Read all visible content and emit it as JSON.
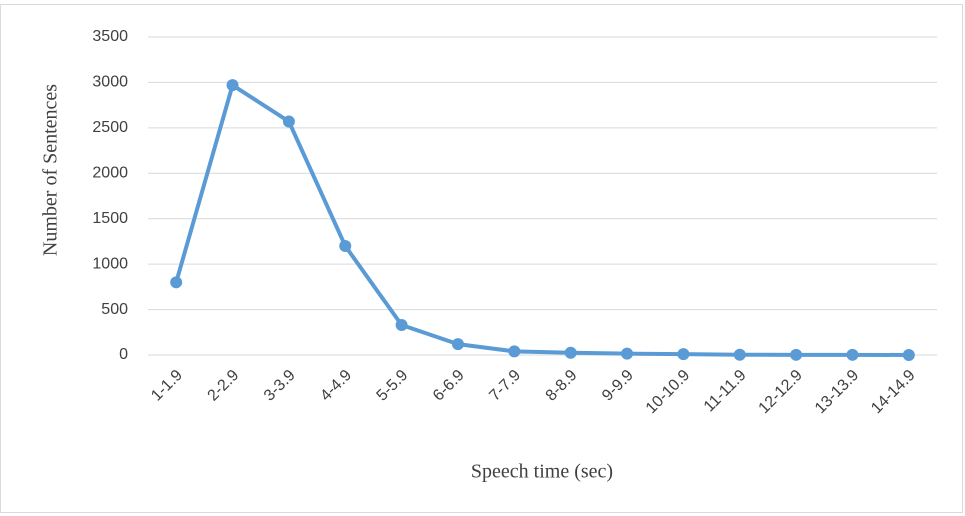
{
  "chart_data": {
    "type": "line",
    "x_label": "Speech time (sec)",
    "y_label": "Number of Sentences",
    "categories": [
      "1-1.9",
      "2-2.9",
      "3-3.9",
      "4-4.9",
      "5-5.9",
      "6-6.9",
      "7-7.9",
      "8-8.9",
      "9-9.9",
      "10-10.9",
      "11-11.9",
      "12-12.9",
      "13-13.9",
      "14-14.9"
    ],
    "series": [
      {
        "color": "#5b9bd5",
        "values": [
          800,
          2970,
          2570,
          1200,
          330,
          120,
          40,
          25,
          15,
          10,
          3,
          2,
          2,
          0
        ]
      }
    ],
    "ylim": [
      0,
      3500
    ],
    "yticks": [
      0,
      500,
      1000,
      1500,
      2000,
      2500,
      3000,
      3500
    ],
    "grid": true
  }
}
